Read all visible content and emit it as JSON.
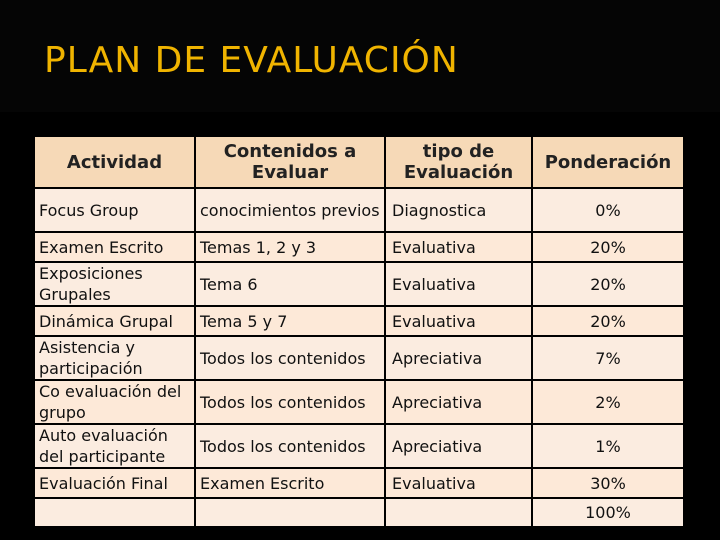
{
  "slide": {
    "title": "PLAN DE EVALUACIÓN"
  },
  "table": {
    "headers": {
      "actividad": "Actividad",
      "contenidos": "Contenidos a Evaluar",
      "tipo": "tipo de Evaluación",
      "ponderacion": "Ponderación"
    },
    "rows": [
      {
        "actividad": "Focus Group",
        "contenidos": "conocimientos previos",
        "tipo": "Diagnostica",
        "ponderacion": "0%"
      },
      {
        "actividad": "Examen Escrito",
        "contenidos": "Temas 1, 2 y 3",
        "tipo": "Evaluativa",
        "ponderacion": "20%"
      },
      {
        "actividad": "Exposiciones Grupales",
        "contenidos": "Tema 6",
        "tipo": "Evaluativa",
        "ponderacion": "20%"
      },
      {
        "actividad": "Dinámica Grupal",
        "contenidos": "Tema 5 y 7",
        "tipo": "Evaluativa",
        "ponderacion": "20%"
      },
      {
        "actividad": "Asistencia y participación",
        "contenidos": "Todos los contenidos",
        "tipo": "Apreciativa",
        "ponderacion": "7%"
      },
      {
        "actividad": "Co evaluación del grupo",
        "contenidos": "Todos los contenidos",
        "tipo": "Apreciativa",
        "ponderacion": "2%"
      },
      {
        "actividad": "Auto evaluación del participante",
        "contenidos": "Todos los contenidos",
        "tipo": "Apreciativa",
        "ponderacion": "1%"
      },
      {
        "actividad": "Evaluación Final",
        "contenidos": "Examen Escrito",
        "tipo": "Evaluativa",
        "ponderacion": "30%"
      },
      {
        "actividad": "",
        "contenidos": "",
        "tipo": "",
        "ponderacion": "100%"
      }
    ]
  }
}
